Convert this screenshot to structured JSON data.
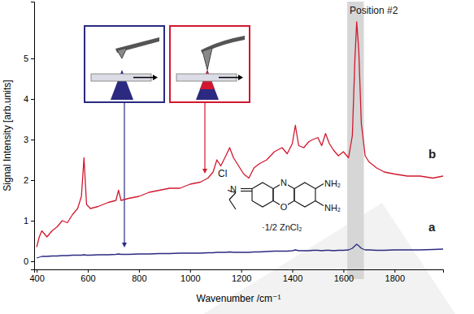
{
  "chart_data": {
    "type": "line",
    "x_label": "Wavenumber /cm⁻¹",
    "y_label": "Signal Intensity [arb.units]",
    "xlim": [
      390,
      1990
    ],
    "ylim": [
      -0.2,
      6.4
    ],
    "xticks": [
      400,
      600,
      800,
      1000,
      1200,
      1400,
      1600,
      1800
    ],
    "yticks": [
      0,
      1,
      2,
      3,
      4,
      5
    ],
    "highlight": [
      1615,
      1680
    ],
    "annotations": [
      "Position #2",
      "Cl",
      "N",
      "O",
      "NH₂",
      "NH₂",
      "·1/2 ZnCl₂"
    ],
    "x": [
      400,
      410,
      420,
      440,
      460,
      480,
      500,
      520,
      540,
      560,
      575,
      585,
      595,
      610,
      640,
      680,
      710,
      720,
      730,
      760,
      800,
      840,
      880,
      920,
      960,
      1000,
      1040,
      1070,
      1090,
      1105,
      1120,
      1140,
      1155,
      1170,
      1190,
      1210,
      1230,
      1250,
      1270,
      1300,
      1330,
      1360,
      1380,
      1400,
      1412,
      1425,
      1445,
      1465,
      1480,
      1500,
      1515,
      1530,
      1545,
      1560,
      1580,
      1600,
      1620,
      1635,
      1645,
      1652,
      1660,
      1670,
      1685,
      1700,
      1730,
      1760,
      1800,
      1850,
      1900,
      1950,
      1990
    ],
    "series": [
      {
        "name": "b",
        "color": "#d2182e",
        "values": [
          0.35,
          0.6,
          0.75,
          0.6,
          0.75,
          0.85,
          1.0,
          0.95,
          1.15,
          1.3,
          1.6,
          2.55,
          1.4,
          1.3,
          1.35,
          1.45,
          1.5,
          1.75,
          1.5,
          1.55,
          1.6,
          1.7,
          1.75,
          1.8,
          1.8,
          1.9,
          1.95,
          2.05,
          2.2,
          2.5,
          2.35,
          2.6,
          2.8,
          2.55,
          2.35,
          2.15,
          2.05,
          2.3,
          2.4,
          2.5,
          2.7,
          2.8,
          2.65,
          2.9,
          3.35,
          2.85,
          2.8,
          2.95,
          3.0,
          3.05,
          2.85,
          3.15,
          2.9,
          2.75,
          2.6,
          2.7,
          2.55,
          3.1,
          5.0,
          5.9,
          5.2,
          3.4,
          2.6,
          2.45,
          2.3,
          2.2,
          2.15,
          2.1,
          2.1,
          2.05,
          2.1
        ]
      },
      {
        "name": "a",
        "color": "#2b2a80",
        "values": [
          0.08,
          0.1,
          0.12,
          0.12,
          0.13,
          0.13,
          0.14,
          0.14,
          0.15,
          0.15,
          0.15,
          0.16,
          0.15,
          0.15,
          0.16,
          0.16,
          0.17,
          0.18,
          0.17,
          0.17,
          0.18,
          0.18,
          0.19,
          0.19,
          0.2,
          0.2,
          0.2,
          0.21,
          0.21,
          0.22,
          0.22,
          0.22,
          0.23,
          0.22,
          0.22,
          0.22,
          0.22,
          0.23,
          0.23,
          0.24,
          0.25,
          0.25,
          0.25,
          0.26,
          0.28,
          0.26,
          0.26,
          0.26,
          0.27,
          0.27,
          0.26,
          0.27,
          0.27,
          0.26,
          0.27,
          0.27,
          0.28,
          0.32,
          0.38,
          0.42,
          0.38,
          0.32,
          0.28,
          0.28,
          0.27,
          0.27,
          0.28,
          0.28,
          0.28,
          0.29,
          0.3
        ]
      }
    ]
  }
}
